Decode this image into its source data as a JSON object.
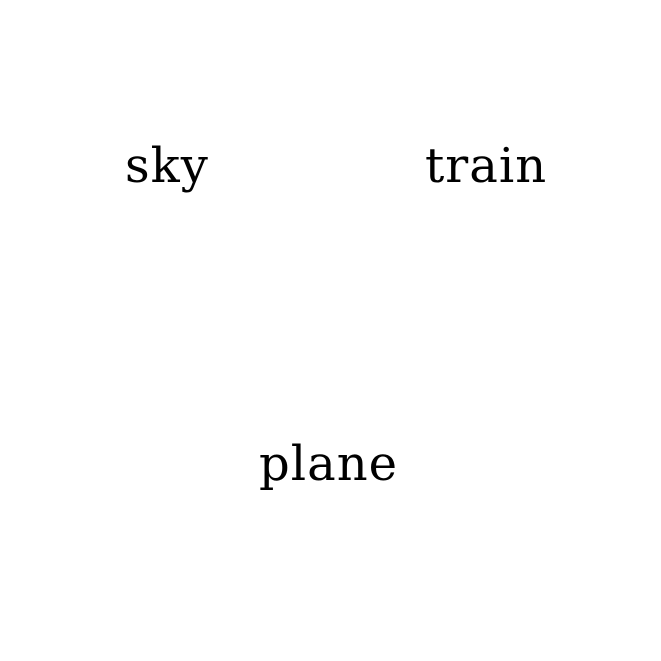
{
  "words": [
    {
      "text": "sky"
    },
    {
      "text": "train"
    },
    {
      "text": "plane"
    }
  ],
  "colors": {
    "background": "#ffffff",
    "text": "#000000"
  }
}
